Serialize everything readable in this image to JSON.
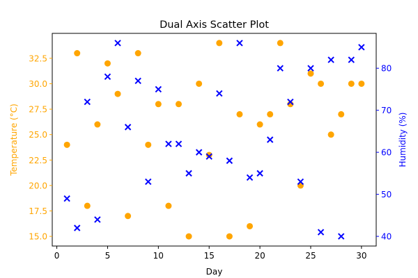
{
  "chart_data": {
    "type": "scatter",
    "title": "Dual Axis Scatter Plot",
    "xlabel": "Day",
    "ylabel_left": "Temperature (°C)",
    "ylabel_right": "Humidity (%)",
    "xlim": [
      -0.45,
      31.45
    ],
    "ylim_left": [
      14.05,
      34.95
    ],
    "ylim_right": [
      37.7,
      88.3
    ],
    "x_ticks": [
      0,
      5,
      10,
      15,
      20,
      25,
      30
    ],
    "y_left_ticks": [
      15.0,
      17.5,
      20.0,
      22.5,
      25.0,
      27.5,
      30.0,
      32.5
    ],
    "y_right_ticks": [
      40,
      50,
      60,
      70,
      80
    ],
    "grid": false,
    "colors": {
      "left_axis": "#ffa500",
      "right_axis": "#0000ff",
      "frame": "#000000"
    },
    "series": [
      {
        "axis": "left",
        "marker": "circle",
        "color": "#ffa500",
        "x": [
          1,
          2,
          3,
          4,
          5,
          6,
          7,
          8,
          9,
          10,
          11,
          12,
          13,
          14,
          15,
          16,
          17,
          18,
          19,
          20,
          21,
          22,
          23,
          24,
          25,
          26,
          27,
          28,
          29,
          30
        ],
        "values": [
          24,
          33,
          18,
          26,
          32,
          29,
          17,
          33,
          24,
          28,
          18,
          28,
          15,
          30,
          23,
          34,
          15,
          27,
          16,
          26,
          27,
          34,
          28,
          20,
          31,
          30,
          25,
          27,
          30,
          30
        ]
      },
      {
        "axis": "right",
        "marker": "x",
        "color": "#0000ff",
        "x": [
          1,
          2,
          3,
          4,
          5,
          6,
          7,
          8,
          9,
          10,
          11,
          12,
          13,
          14,
          15,
          16,
          17,
          18,
          19,
          20,
          21,
          22,
          23,
          24,
          25,
          26,
          27,
          28,
          29,
          30
        ],
        "values": [
          49,
          42,
          72,
          44,
          78,
          86,
          66,
          77,
          53,
          75,
          62,
          62,
          55,
          60,
          59,
          74,
          58,
          86,
          54,
          55,
          63,
          80,
          72,
          53,
          80,
          41,
          82,
          40,
          82,
          85
        ]
      }
    ]
  }
}
